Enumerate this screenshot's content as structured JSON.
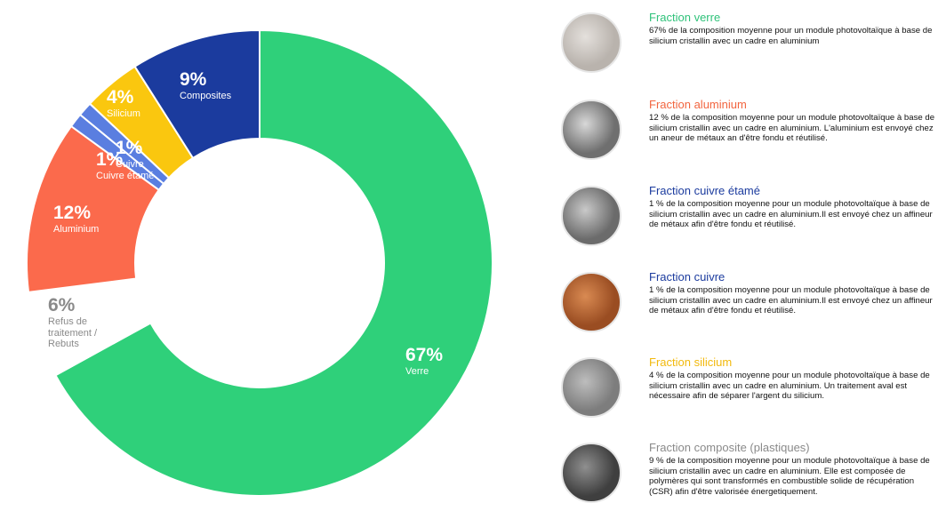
{
  "chart_data": {
    "type": "donut",
    "categories": [
      "Verre",
      "Refus de traitement / Rebuts",
      "Aluminium",
      "Cuivre étamé",
      "Cuivre",
      "Silicium",
      "Composites"
    ],
    "values": [
      67,
      6,
      12,
      1,
      1,
      4,
      9
    ],
    "value_labels": [
      "67%",
      "6%",
      "12%",
      "1%",
      "1%",
      "4%",
      "9%"
    ],
    "colors": [
      "#2fd07a",
      "#ffffff",
      "#fb6a4c",
      "#5a7ee0",
      "#5a7ee0",
      "#fac70f",
      "#1b3b9e"
    ]
  },
  "panel": [
    {
      "title": "Fraction verre",
      "color": "#2fc27a",
      "text": "67% de la composition moyenne pour un module photovoltaïque à base de silicium cristallin avec un cadre en aluminium"
    },
    {
      "title": "Fraction aluminium",
      "color": "#f2653f",
      "text": "12 % de la composition moyenne pour un module photovoltaïque à base de silicium cristallin avec un cadre en aluminium. L'aluminium est envoyé chez un aneur de métaux an d'être fondu et réutilisé."
    },
    {
      "title": "Fraction cuivre étamé",
      "color": "#1b3b9e",
      "text": "1 % de la composition moyenne pour un module photovoltaïque à base de silicium cristallin avec un cadre en aluminium.Il est envoyé chez un affineur de métaux afin d'être fondu et réutilisé."
    },
    {
      "title": "Fraction cuivre",
      "color": "#1b3b9e",
      "text": "1 % de la composition moyenne pour un module photovoltaïque à base de silicium cristallin avec un cadre en aluminium.Il est envoyé chez un affineur de métaux afin d'être fondu et réutilisé."
    },
    {
      "title": "Fraction silicium",
      "color": "#f2b90c",
      "text": "4 % de la composition moyenne pour un module photovoltaïque à base de silicium cristallin avec un cadre en aluminium. Un traitement aval est nécessaire afin de séparer l'argent du silicium."
    },
    {
      "title": "Fraction composite (plastiques)",
      "color": "#8a8a8a",
      "text": "9 % de la composition moyenne pour un module photovoltaïque à base de silicium cristallin avec un cadre en aluminium. Elle est composée de polymères qui sont transformés en combustible solide de récupération (CSR) afin d'être valorisée énergetiquement."
    }
  ]
}
